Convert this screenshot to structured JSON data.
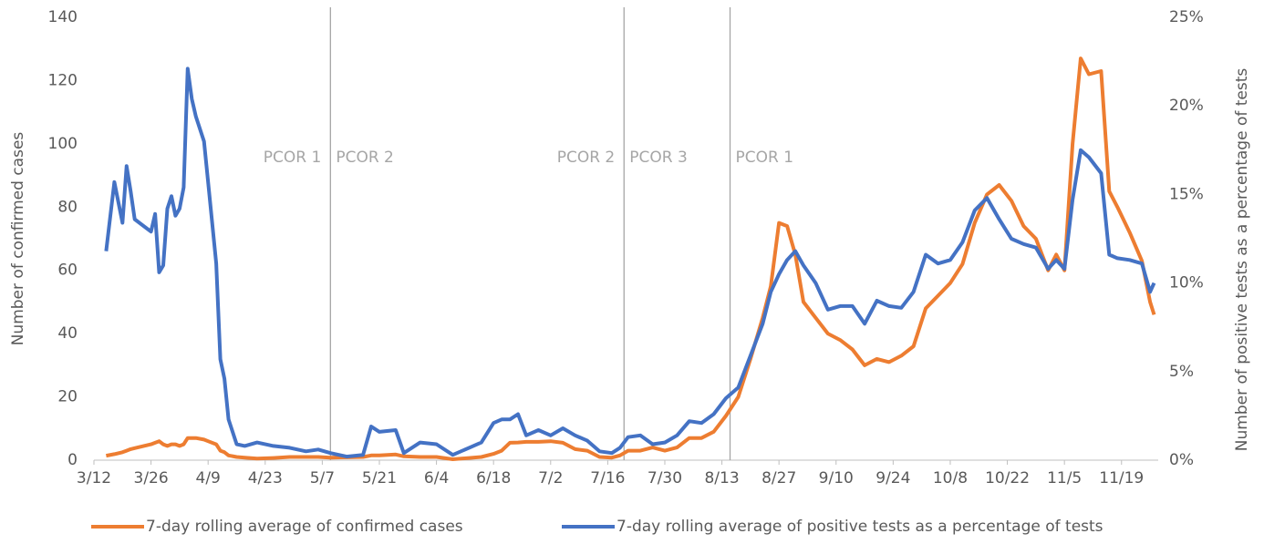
{
  "chart_data": {
    "type": "line",
    "x": [
      "3/15",
      "3/17",
      "3/19",
      "3/20",
      "3/21",
      "3/22",
      "3/26",
      "3/27",
      "3/28",
      "3/29",
      "3/30",
      "3/31",
      "4/1",
      "4/2",
      "4/3",
      "4/4",
      "4/5",
      "4/6",
      "4/8",
      "4/9",
      "4/11",
      "4/12",
      "4/13",
      "4/14",
      "4/16",
      "4/18",
      "4/21",
      "4/25",
      "4/29",
      "5/3",
      "5/6",
      "5/9",
      "5/13",
      "5/17",
      "5/19",
      "5/21",
      "5/25",
      "5/27",
      "5/31",
      "6/4",
      "6/8",
      "6/12",
      "6/15",
      "6/18",
      "6/20",
      "6/22",
      "6/24",
      "6/26",
      "6/29",
      "7/2",
      "7/5",
      "7/8",
      "7/11",
      "7/14",
      "7/17",
      "7/19",
      "7/21",
      "7/24",
      "7/27",
      "7/30",
      "8/2",
      "8/5",
      "8/8",
      "8/11",
      "8/14",
      "8/17",
      "8/20",
      "8/23",
      "8/25",
      "8/27",
      "8/29",
      "8/31",
      "9/2",
      "9/5",
      "9/8",
      "9/11",
      "9/14",
      "9/17",
      "9/20",
      "9/23",
      "9/26",
      "9/29",
      "10/2",
      "10/5",
      "10/8",
      "10/11",
      "10/14",
      "10/17",
      "10/20",
      "10/23",
      "10/26",
      "10/29",
      "11/1",
      "11/3",
      "11/5",
      "11/7",
      "11/9",
      "11/11",
      "11/14",
      "11/16",
      "11/18",
      "11/21",
      "11/24",
      "11/26",
      "11/27"
    ],
    "series": [
      {
        "name": "7-day rolling average of confirmed cases",
        "color": "#ed7d31",
        "values": [
          1.4,
          1.9,
          2.5,
          3,
          3.5,
          3.8,
          5,
          5.5,
          6,
          5,
          4.5,
          5,
          5,
          4.5,
          5,
          7,
          7,
          7,
          6.5,
          6,
          5,
          3,
          2.5,
          1.5,
          1,
          0.8,
          0.5,
          0.7,
          1,
          1,
          1,
          0.8,
          0.9,
          1,
          1.5,
          1.5,
          1.8,
          1.2,
          1,
          1,
          0.3,
          0.7,
          1,
          2,
          3,
          5.5,
          5.6,
          5.8,
          5.8,
          6,
          5.5,
          3.5,
          3,
          1,
          0.8,
          1.5,
          3,
          3,
          4,
          3,
          4,
          7,
          7,
          9,
          14,
          20,
          32,
          45,
          55,
          75,
          74,
          65,
          50,
          45,
          40,
          38,
          35,
          30,
          32,
          31,
          33,
          36,
          48,
          52,
          56,
          62,
          75,
          84,
          87,
          82,
          74,
          70,
          60,
          65,
          60,
          100,
          127,
          122,
          123,
          85,
          80,
          72,
          63,
          50,
          46
        ]
      },
      {
        "name": "7-day rolling average of positive tests as a percentage of tests",
        "color": "#4472c4",
        "axis": "y2",
        "values": [
          11.8,
          15.7,
          13.4,
          16.6,
          15.2,
          13.6,
          12.9,
          13.9,
          10.6,
          11,
          14.2,
          14.9,
          13.8,
          14.2,
          15.4,
          22.1,
          20.4,
          19.4,
          18,
          15.7,
          11.1,
          5.7,
          4.6,
          2.3,
          0.9,
          0.8,
          1,
          0.8,
          0.7,
          0.5,
          0.6,
          0.4,
          0.2,
          0.3,
          1.9,
          1.6,
          1.7,
          0.4,
          1,
          0.9,
          0.3,
          0.7,
          1,
          2.1,
          2.3,
          2.3,
          2.6,
          1.4,
          1.7,
          1.4,
          1.8,
          1.4,
          1.1,
          0.5,
          0.4,
          0.7,
          1.3,
          1.4,
          0.9,
          1,
          1.4,
          2.2,
          2.1,
          2.6,
          3.5,
          4.1,
          5.9,
          7.7,
          9.5,
          10.5,
          11.3,
          11.8,
          11,
          10,
          8.5,
          8.7,
          8.7,
          7.7,
          9,
          8.7,
          8.6,
          9.5,
          11.6,
          11.1,
          11.3,
          12.3,
          14.1,
          14.8,
          13.6,
          12.5,
          12.2,
          12,
          10.8,
          11.3,
          10.8,
          14.7,
          17.5,
          17.1,
          16.2,
          11.6,
          11.4,
          11.3,
          11.1,
          9.5,
          10
        ]
      }
    ],
    "xlim": [
      "3/12",
      "11/28"
    ],
    "xticks": [
      "3/12",
      "3/26",
      "4/9",
      "4/23",
      "5/7",
      "5/21",
      "6/4",
      "6/18",
      "7/2",
      "7/16",
      "7/30",
      "8/13",
      "8/27",
      "9/10",
      "9/24",
      "10/8",
      "10/22",
      "11/5",
      "11/19"
    ],
    "ylim": [
      0,
      140
    ],
    "yticks": [
      0,
      20,
      40,
      60,
      80,
      100,
      120,
      140
    ],
    "y2lim": [
      0,
      25
    ],
    "y2ticks": [
      {
        "value": 0,
        "label": "0%"
      },
      {
        "value": 5,
        "label": "5%"
      },
      {
        "value": 10,
        "label": "10%"
      },
      {
        "value": 15,
        "label": "15%"
      },
      {
        "value": 20,
        "label": "20%"
      },
      {
        "value": 25,
        "label": "25%"
      }
    ],
    "ylabel": "Number of confirmed cases",
    "y2label": "Number of positive tests as a percentage of tests",
    "phase_lines": [
      {
        "x": "5/9",
        "left": "PCOR 1",
        "right": "PCOR 2"
      },
      {
        "x": "7/20",
        "left": "PCOR 2",
        "right": "PCOR 3"
      },
      {
        "x": "8/15",
        "right": "PCOR 1"
      }
    ],
    "legend": "bottom"
  }
}
